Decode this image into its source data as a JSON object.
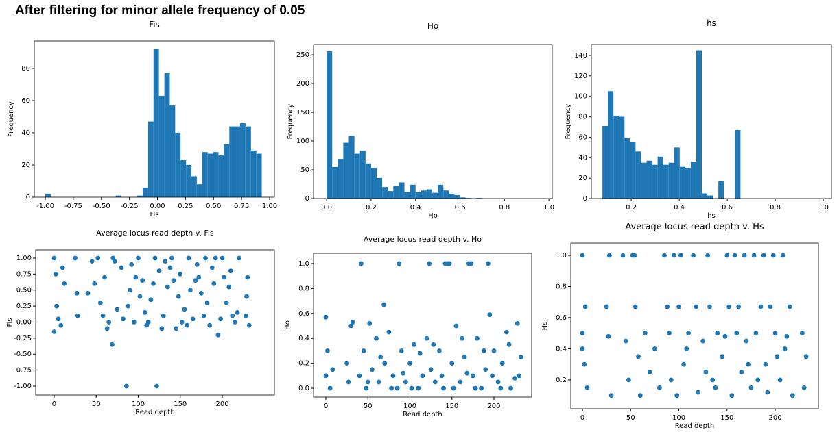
{
  "title": "After filtering for minor allele frequency of 0.05",
  "chart_data": [
    {
      "type": "histogram",
      "title": "Fis",
      "xlabel": "Fis",
      "ylabel": "Frequency",
      "color": "#1f77b4",
      "bins": [
        -1.0,
        -0.952,
        -0.904,
        -0.855,
        -0.807,
        -0.759,
        -0.711,
        -0.662,
        -0.614,
        -0.566,
        -0.518,
        -0.469,
        -0.421,
        -0.373,
        -0.325,
        -0.276,
        -0.228,
        -0.18,
        -0.132,
        -0.083,
        -0.035,
        0.013,
        0.062,
        0.11,
        0.158,
        0.206,
        0.255,
        0.303,
        0.351,
        0.399,
        0.448,
        0.496,
        0.544,
        0.592,
        0.641,
        0.689,
        0.737,
        0.785,
        0.834,
        0.882,
        0.93
      ],
      "counts": [
        2,
        0,
        0,
        0,
        0,
        0,
        0,
        0,
        0,
        0,
        0,
        0,
        0,
        1,
        0,
        0,
        0,
        1,
        6,
        47,
        92,
        63,
        77,
        57,
        40,
        23,
        20,
        13,
        8,
        28,
        27,
        28,
        26,
        33,
        44,
        44,
        46,
        44,
        29,
        27
      ],
      "xlim": [
        -1.098,
        1.043
      ],
      "ylim": [
        0,
        97
      ],
      "xticks": [
        {
          "value": -1,
          "label": "-1.00"
        },
        {
          "value": -0.75,
          "label": "-0.75"
        },
        {
          "value": -0.5,
          "label": "-0.50"
        },
        {
          "value": -0.25,
          "label": "-0.25"
        },
        {
          "value": 0,
          "label": "0.00"
        },
        {
          "value": 0.25,
          "label": "0.25"
        },
        {
          "value": 0.5,
          "label": "0.50"
        },
        {
          "value": 0.75,
          "label": "0.75"
        },
        {
          "value": 1,
          "label": "1.00"
        }
      ],
      "yticks": [
        0,
        20,
        40,
        60,
        80
      ]
    },
    {
      "type": "histogram",
      "title": "Ho",
      "xlabel": "Ho",
      "ylabel": "Frequency",
      "color": "#1f77b4",
      "bins": [
        0,
        0.025,
        0.05,
        0.075,
        0.1,
        0.125,
        0.15,
        0.175,
        0.2,
        0.225,
        0.25,
        0.275,
        0.3,
        0.325,
        0.35,
        0.375,
        0.4,
        0.425,
        0.45,
        0.475,
        0.5,
        0.525,
        0.55,
        0.575,
        0.6,
        0.625,
        0.65,
        0.675,
        0.7,
        0.725,
        0.75,
        0.775,
        0.8,
        0.825,
        0.85,
        0.875,
        0.9,
        0.925,
        0.95,
        0.975,
        1.0
      ],
      "counts": [
        256,
        55,
        69,
        97,
        109,
        78,
        83,
        61,
        53,
        36,
        20,
        13,
        22,
        28,
        11,
        24,
        11,
        14,
        16,
        10,
        24,
        14,
        8,
        6,
        2,
        1,
        0,
        1,
        0,
        0,
        0,
        0,
        0,
        0,
        0,
        0,
        0,
        0,
        0,
        0
      ],
      "xlim": [
        -0.059,
        1.015
      ],
      "ylim": [
        0,
        268
      ],
      "xticks": [
        {
          "value": 0,
          "label": "0.0"
        },
        0.2,
        0.4,
        0.6,
        0.8,
        {
          "value": 1,
          "label": "1.0"
        }
      ],
      "yticks": [
        0,
        50,
        100,
        150,
        200,
        250
      ]
    },
    {
      "type": "histogram",
      "title": "hs",
      "xlabel": "hs",
      "ylabel": "Frequency",
      "color": "#1f77b4",
      "bins": [
        0.08,
        0.103,
        0.126,
        0.149,
        0.172,
        0.195,
        0.218,
        0.241,
        0.264,
        0.287,
        0.31,
        0.333,
        0.356,
        0.379,
        0.402,
        0.425,
        0.448,
        0.471,
        0.494,
        0.517,
        0.54,
        0.563,
        0.586,
        0.609,
        0.632,
        0.655,
        0.678,
        0.701,
        0.724,
        0.747,
        0.77,
        0.793,
        0.816,
        0.839,
        0.862,
        0.885,
        0.908,
        0.931,
        0.954,
        0.977,
        1.0
      ],
      "counts": [
        71,
        105,
        81,
        80,
        59,
        55,
        46,
        35,
        37,
        33,
        41,
        33,
        35,
        50,
        31,
        30,
        36,
        145,
        5,
        3,
        0,
        17,
        0,
        0,
        67,
        0,
        0,
        0,
        0,
        0,
        0,
        0,
        0,
        0,
        0,
        0,
        0,
        0,
        0,
        0
      ],
      "xlim": [
        0.034,
        1.034
      ],
      "ylim": [
        0,
        150.7
      ],
      "xticks": [
        0.2,
        0.4,
        0.6,
        0.8,
        {
          "value": 1,
          "label": "1.0"
        }
      ],
      "yticks": [
        0,
        20,
        40,
        60,
        80,
        100,
        120,
        140
      ]
    },
    {
      "type": "scatter",
      "title": "Average locus read depth v. Fis",
      "xlabel": "Read depth",
      "ylabel": "Fis",
      "color": "#1f77b4",
      "x": [
        0,
        2,
        5,
        8,
        12,
        25,
        28,
        40,
        45,
        52,
        55,
        60,
        63,
        69,
        70,
        75,
        80,
        86,
        90,
        95,
        100,
        105,
        110,
        115,
        120,
        122,
        125,
        130,
        135,
        140,
        145,
        150,
        155,
        160,
        165,
        170,
        175,
        180,
        185,
        190,
        195,
        200,
        205,
        210,
        215,
        220,
        228,
        230,
        232,
        0,
        3,
        10,
        27,
        48,
        58,
        72,
        88,
        97,
        108,
        118,
        128,
        138,
        148,
        158,
        168,
        178,
        188,
        198,
        208,
        218,
        229,
        65,
        92,
        112,
        132,
        152,
        172,
        192,
        212,
        82,
        102,
        142,
        162,
        182,
        202
      ],
      "y": [
        1.0,
        0.75,
        0.05,
        -0.05,
        0.6,
        1.0,
        0.1,
        0.45,
        0.95,
        1.0,
        0.3,
        0.7,
        -0.1,
        -0.35,
        1.0,
        0.2,
        0.85,
        -1.0,
        0.5,
        0.0,
        1.0,
        0.65,
        -0.05,
        0.35,
        1.0,
        -1.0,
        0.8,
        0.1,
        0.55,
        1.0,
        -0.1,
        0.75,
        0.2,
        1.0,
        0.05,
        0.9,
        0.45,
        1.0,
        -0.05,
        0.6,
        -0.2,
        1.0,
        0.3,
        0.8,
        0.0,
        1.0,
        0.1,
        0.7,
        -0.05,
        -0.15,
        0.25,
        0.85,
        0.45,
        0.6,
        0.1,
        0.95,
        0.25,
        0.7,
        0.15,
        0.6,
        -0.1,
        0.85,
        0.4,
        -0.05,
        0.65,
        0.1,
        0.85,
        0.05,
        0.55,
        0.15,
        0.4,
        0.0,
        0.9,
        0.0,
        0.95,
        0.0,
        0.7,
        1.0,
        0.1,
        0.05,
        0.4,
        0.65,
        0.5,
        0.3,
        0.7
      ],
      "xlim": [
        -22,
        262
      ],
      "ylim": [
        -1.139,
        1.128
      ],
      "xticks": [
        0,
        50,
        100,
        150,
        200
      ],
      "yticks": [
        {
          "value": -1,
          "label": "-1.00"
        },
        {
          "value": -0.75,
          "label": "-0.75"
        },
        {
          "value": -0.5,
          "label": "-0.50"
        },
        {
          "value": -0.25,
          "label": "-0.25"
        },
        {
          "value": 0,
          "label": "0.00"
        },
        {
          "value": 0.25,
          "label": "0.25"
        },
        {
          "value": 0.5,
          "label": "0.50"
        },
        {
          "value": 0.75,
          "label": "0.75"
        },
        {
          "value": 1,
          "label": "1.00"
        }
      ]
    },
    {
      "type": "scatter",
      "title": "Average locus read depth v. Ho",
      "xlabel": "Read depth",
      "ylabel": "Ho",
      "color": "#1f77b4",
      "x": [
        0,
        0,
        2,
        5,
        8,
        25,
        27,
        30,
        32,
        40,
        42,
        45,
        48,
        52,
        55,
        60,
        63,
        69,
        70,
        75,
        80,
        85,
        87,
        90,
        95,
        100,
        105,
        110,
        115,
        120,
        123,
        125,
        130,
        135,
        140,
        142,
        145,
        147,
        150,
        155,
        160,
        165,
        170,
        173,
        175,
        180,
        185,
        190,
        193,
        195,
        200,
        205,
        210,
        215,
        220,
        228,
        230,
        232,
        50,
        65,
        78,
        92,
        102,
        112,
        128,
        138,
        152,
        162,
        168,
        178,
        188,
        198,
        208,
        218,
        225
      ],
      "y": [
        0.57,
        0.1,
        0.3,
        0.0,
        0.15,
        0.2,
        0.05,
        0.5,
        0.53,
        0.1,
        1.0,
        0.3,
        0.0,
        0.52,
        0.15,
        0.4,
        0.05,
        0.67,
        0.2,
        0.45,
        0.1,
        0.0,
        1.0,
        0.3,
        0.05,
        0.2,
        0.35,
        0.0,
        0.1,
        0.4,
        1.0,
        0.15,
        0.05,
        0.3,
        0.0,
        1.0,
        1.0,
        1.0,
        0.2,
        0.5,
        0.05,
        0.25,
        1.0,
        1.0,
        0.1,
        0.4,
        0.0,
        0.15,
        1.0,
        0.59,
        0.3,
        0.05,
        0.2,
        0.45,
        0.0,
        0.52,
        0.1,
        0.25,
        0.05,
        0.25,
        0.0,
        0.12,
        0.0,
        0.28,
        0.35,
        0.1,
        0.0,
        0.4,
        0.12,
        0.0,
        0.3,
        0.1,
        0.0,
        0.35,
        0.08
      ],
      "xlim": [
        -14.7,
        244.9
      ],
      "ylim": [
        -0.071,
        1.082
      ],
      "xticks": [
        0,
        50,
        100,
        150,
        200
      ],
      "yticks": [
        {
          "value": 0,
          "label": "0.0"
        },
        0.2,
        0.4,
        0.6,
        0.8,
        {
          "value": 1,
          "label": "1.0"
        }
      ]
    },
    {
      "type": "scatter",
      "title": "Average locus read depth v. Hs",
      "xlabel": "Read depth",
      "ylabel": "Hs",
      "color": "#1f77b4",
      "x": [
        0,
        3,
        0,
        2,
        5,
        0,
        25,
        28,
        27,
        30,
        42,
        45,
        48,
        52,
        54,
        55,
        58,
        60,
        65,
        70,
        75,
        80,
        85,
        88,
        90,
        92,
        95,
        100,
        102,
        105,
        110,
        115,
        118,
        120,
        125,
        130,
        132,
        135,
        140,
        145,
        150,
        152,
        155,
        158,
        160,
        162,
        165,
        168,
        170,
        175,
        178,
        180,
        185,
        188,
        190,
        192,
        195,
        198,
        200,
        205,
        208,
        210,
        215,
        218,
        228,
        230,
        232,
        98,
        108,
        128,
        138,
        148,
        172,
        182,
        202,
        212
      ],
      "y": [
        1.0,
        0.67,
        0.5,
        0.3,
        0.15,
        0.4,
        0.67,
        1.0,
        0.48,
        0.1,
        1.0,
        0.45,
        0.2,
        1.0,
        1.0,
        0.67,
        0.35,
        0.1,
        0.5,
        0.25,
        0.4,
        0.15,
        1.0,
        0.67,
        0.5,
        0.2,
        1.0,
        0.67,
        1.0,
        0.3,
        0.5,
        1.0,
        0.67,
        0.12,
        0.45,
        1.0,
        0.67,
        0.2,
        0.5,
        0.35,
        1.0,
        0.67,
        0.1,
        1.0,
        0.5,
        0.67,
        0.25,
        1.0,
        0.45,
        0.15,
        1.0,
        0.5,
        0.67,
        1.0,
        0.3,
        0.12,
        0.67,
        1.0,
        0.5,
        0.2,
        1.0,
        0.4,
        0.67,
        0.1,
        0.5,
        0.15,
        0.35,
        0.1,
        0.4,
        0.25,
        0.15,
        0.48,
        0.3,
        0.2,
        0.35,
        0.48
      ],
      "xlim": [
        -12.1,
        244.8
      ],
      "ylim": [
        0.015,
        1.079
      ],
      "xticks": [
        0,
        50,
        100,
        150,
        200
      ],
      "yticks": [
        0.2,
        0.4,
        0.6,
        0.8,
        {
          "value": 1,
          "label": "1.0"
        }
      ]
    }
  ]
}
